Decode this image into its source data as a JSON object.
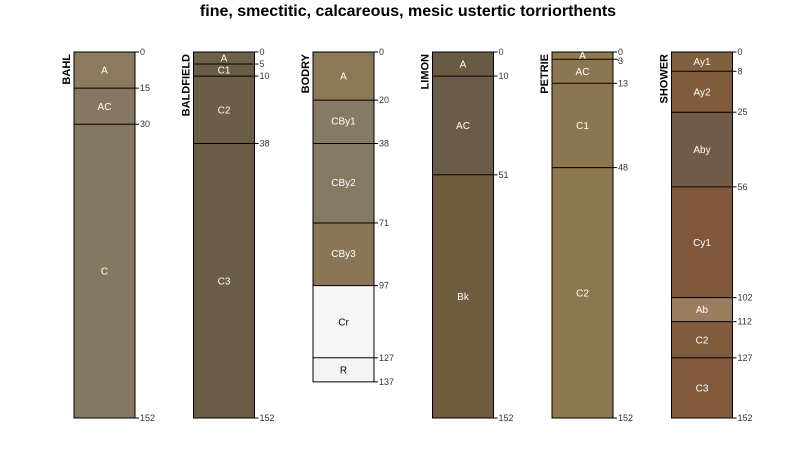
{
  "chart_data": {
    "type": "soil-profile-sketch",
    "title": "fine, smectitic, calcareous, mesic ustertic torriorthents",
    "depth_unit": "cm",
    "depth_range": [
      0,
      152
    ],
    "profiles": [
      {
        "name": "BAHL",
        "horizons": [
          {
            "name": "A",
            "top": 0,
            "bottom": 15,
            "color": "#8b7a5e",
            "text_color": "#ffffff"
          },
          {
            "name": "AC",
            "top": 15,
            "bottom": 30,
            "color": "#857760",
            "text_color": "#ffffff"
          },
          {
            "name": "C",
            "top": 30,
            "bottom": 152,
            "color": "#857860",
            "text_color": "#ffffff"
          }
        ]
      },
      {
        "name": "BALDFIELD",
        "horizons": [
          {
            "name": "A",
            "top": 0,
            "bottom": 5,
            "color": "#6e5f48",
            "text_color": "#ffffff"
          },
          {
            "name": "C1",
            "top": 5,
            "bottom": 10,
            "color": "#6b5c46",
            "text_color": "#ffffff"
          },
          {
            "name": "C2",
            "top": 10,
            "bottom": 38,
            "color": "#6b5d46",
            "text_color": "#ffffff"
          },
          {
            "name": "C3",
            "top": 38,
            "bottom": 152,
            "color": "#6a5c45",
            "text_color": "#ffffff"
          }
        ]
      },
      {
        "name": "BODRY",
        "horizons": [
          {
            "name": "A",
            "top": 0,
            "bottom": 20,
            "color": "#8d7856",
            "text_color": "#ffffff"
          },
          {
            "name": "CBy1",
            "top": 20,
            "bottom": 38,
            "color": "#877a64",
            "text_color": "#ffffff"
          },
          {
            "name": "CBy2",
            "top": 38,
            "bottom": 71,
            "color": "#857964",
            "text_color": "#ffffff"
          },
          {
            "name": "CBy3",
            "top": 71,
            "bottom": 97,
            "color": "#8a7656",
            "text_color": "#ffffff"
          },
          {
            "name": "Cr",
            "top": 97,
            "bottom": 127,
            "color": "#f6f6f6",
            "text_color": "#000000"
          },
          {
            "name": "R",
            "top": 127,
            "bottom": 137,
            "color": "#f4f4f4",
            "text_color": "#000000"
          }
        ]
      },
      {
        "name": "LIMON",
        "horizons": [
          {
            "name": "A",
            "top": 0,
            "bottom": 10,
            "color": "#6b5a43",
            "text_color": "#ffffff"
          },
          {
            "name": "AC",
            "top": 10,
            "bottom": 51,
            "color": "#6b5b49",
            "text_color": "#ffffff"
          },
          {
            "name": "Bk",
            "top": 51,
            "bottom": 152,
            "color": "#6f5c3e",
            "text_color": "#ffffff"
          }
        ]
      },
      {
        "name": "PETRIE",
        "horizons": [
          {
            "name": "A",
            "top": 0,
            "bottom": 3,
            "color": "#8f794f",
            "text_color": "#ffffff"
          },
          {
            "name": "AC",
            "top": 3,
            "bottom": 13,
            "color": "#8b7650",
            "text_color": "#ffffff"
          },
          {
            "name": "C1",
            "top": 13,
            "bottom": 48,
            "color": "#8b7650",
            "text_color": "#ffffff"
          },
          {
            "name": "C2",
            "top": 48,
            "bottom": 152,
            "color": "#8c774f",
            "text_color": "#ffffff"
          }
        ]
      },
      {
        "name": "SHOWER",
        "horizons": [
          {
            "name": "Ay1",
            "top": 0,
            "bottom": 8,
            "color": "#80603f",
            "text_color": "#ffffff"
          },
          {
            "name": "Ay2",
            "top": 8,
            "bottom": 25,
            "color": "#805c3b",
            "text_color": "#ffffff"
          },
          {
            "name": "Aby",
            "top": 25,
            "bottom": 56,
            "color": "#735a46",
            "text_color": "#ffffff"
          },
          {
            "name": "Cy1",
            "top": 56,
            "bottom": 102,
            "color": "#7f573d",
            "text_color": "#ffffff"
          },
          {
            "name": "Ab",
            "top": 102,
            "bottom": 112,
            "color": "#9a7d5e",
            "text_color": "#ffffff"
          },
          {
            "name": "C2",
            "top": 112,
            "bottom": 127,
            "color": "#805b3c",
            "text_color": "#ffffff"
          },
          {
            "name": "C3",
            "top": 127,
            "bottom": 152,
            "color": "#815a3c",
            "text_color": "#ffffff"
          }
        ]
      }
    ]
  }
}
